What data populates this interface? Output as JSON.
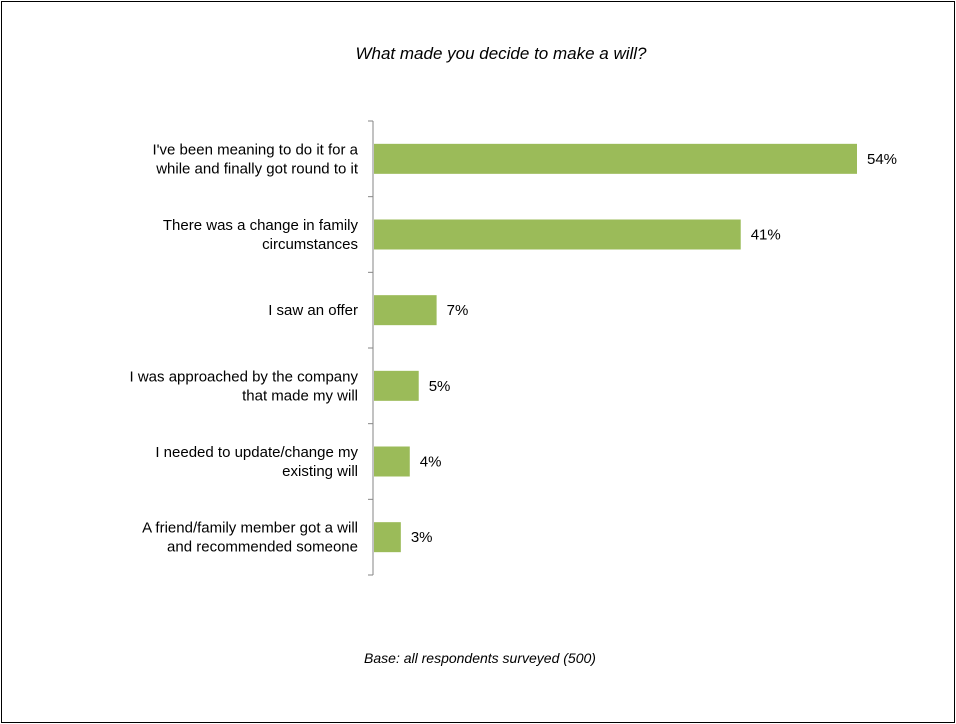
{
  "chart_data": {
    "type": "bar",
    "orientation": "horizontal",
    "title": "What made you decide to make a will?",
    "note": "Base: all respondents surveyed (500)",
    "categories": [
      [
        "I've been meaning to do it for a",
        "while and finally got round to it"
      ],
      [
        "There was a change in family",
        "circumstances"
      ],
      [
        "I saw an offer"
      ],
      [
        "I was approached by the company",
        "that made my will"
      ],
      [
        "I needed to update/change my",
        "existing will"
      ],
      [
        "A friend/family member got a will",
        "and recommended someone"
      ]
    ],
    "values": [
      54,
      41,
      7,
      5,
      4,
      3
    ],
    "value_labels": [
      "54%",
      "41%",
      "7%",
      "5%",
      "4%",
      "3%"
    ],
    "unit": "%",
    "xlim": [
      0,
      54
    ],
    "bar_color": "#9bbb59",
    "axis_color": "#868686",
    "grid": false,
    "legend": "none"
  }
}
